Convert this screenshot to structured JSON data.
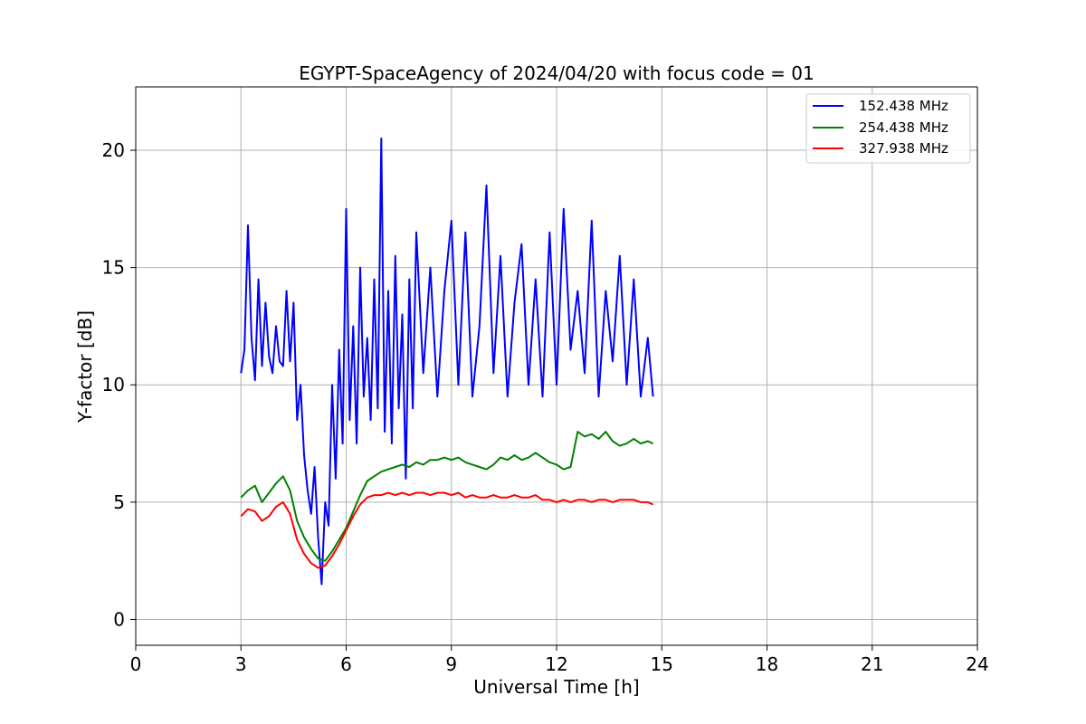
{
  "chart_data": {
    "type": "line",
    "title": "EGYPT-SpaceAgency of 2024/04/20 with focus code = 01",
    "xlabel": "Universal Time [h]",
    "ylabel": "Y-factor [dB]",
    "xlim": [
      0,
      24
    ],
    "ylim": [
      -1.1,
      22.7
    ],
    "xticks": [
      0,
      3,
      6,
      9,
      12,
      15,
      18,
      21,
      24
    ],
    "xtick_labels": [
      "0",
      "3",
      "6",
      "9",
      "12",
      "15",
      "18",
      "21",
      "24"
    ],
    "yticks": [
      0,
      5,
      10,
      15,
      20
    ],
    "ytick_labels": [
      "0",
      "5",
      "10",
      "15",
      "20"
    ],
    "grid": true,
    "legend_position": "top-right",
    "series": [
      {
        "name": "152.438 MHz",
        "color": "#0000ff",
        "x": [
          3.0,
          3.1,
          3.2,
          3.3,
          3.4,
          3.5,
          3.6,
          3.7,
          3.8,
          3.9,
          4.0,
          4.1,
          4.2,
          4.3,
          4.4,
          4.5,
          4.6,
          4.7,
          4.8,
          4.9,
          5.0,
          5.1,
          5.2,
          5.3,
          5.4,
          5.5,
          5.6,
          5.7,
          5.8,
          5.9,
          6.0,
          6.1,
          6.2,
          6.3,
          6.4,
          6.5,
          6.6,
          6.7,
          6.8,
          6.9,
          7.0,
          7.1,
          7.2,
          7.3,
          7.4,
          7.5,
          7.6,
          7.7,
          7.8,
          7.9,
          8.0,
          8.2,
          8.4,
          8.6,
          8.8,
          9.0,
          9.2,
          9.4,
          9.6,
          9.8,
          10.0,
          10.2,
          10.4,
          10.6,
          10.8,
          11.0,
          11.2,
          11.4,
          11.6,
          11.8,
          12.0,
          12.2,
          12.4,
          12.6,
          12.8,
          13.0,
          13.2,
          13.4,
          13.6,
          13.8,
          14.0,
          14.2,
          14.4,
          14.6,
          14.75
        ],
        "values": [
          10.5,
          11.5,
          16.8,
          12.0,
          10.2,
          14.5,
          10.8,
          13.5,
          11.2,
          10.5,
          12.5,
          11.0,
          10.8,
          14.0,
          11.0,
          13.5,
          8.5,
          10.0,
          7.0,
          5.5,
          4.5,
          6.5,
          3.5,
          1.5,
          5.0,
          4.0,
          10.0,
          6.0,
          11.5,
          7.5,
          17.5,
          8.5,
          12.5,
          7.5,
          15.0,
          9.5,
          12.0,
          8.5,
          14.5,
          9.0,
          20.5,
          8.0,
          14.0,
          7.5,
          15.5,
          9.0,
          13.0,
          6.0,
          14.5,
          9.0,
          16.5,
          10.5,
          15.0,
          9.5,
          14.0,
          17.0,
          10.0,
          16.5,
          9.5,
          12.5,
          18.5,
          10.5,
          15.5,
          9.5,
          13.5,
          16.0,
          10.0,
          14.5,
          9.5,
          16.5,
          10.0,
          17.5,
          11.5,
          14.0,
          10.5,
          17.0,
          9.5,
          14.0,
          11.0,
          15.5,
          10.0,
          14.5,
          9.5,
          12.0,
          9.5
        ]
      },
      {
        "name": "254.438 MHz",
        "color": "#008000",
        "x": [
          3.0,
          3.2,
          3.4,
          3.6,
          3.8,
          4.0,
          4.2,
          4.4,
          4.6,
          4.8,
          5.0,
          5.2,
          5.4,
          5.6,
          5.8,
          6.0,
          6.2,
          6.4,
          6.6,
          6.8,
          7.0,
          7.2,
          7.4,
          7.6,
          7.8,
          8.0,
          8.2,
          8.4,
          8.6,
          8.8,
          9.0,
          9.2,
          9.4,
          9.6,
          9.8,
          10.0,
          10.2,
          10.4,
          10.6,
          10.8,
          11.0,
          11.2,
          11.4,
          11.6,
          11.8,
          12.0,
          12.2,
          12.4,
          12.6,
          12.8,
          13.0,
          13.2,
          13.4,
          13.6,
          13.8,
          14.0,
          14.2,
          14.4,
          14.6,
          14.75
        ],
        "values": [
          5.2,
          5.5,
          5.7,
          5.0,
          5.4,
          5.8,
          6.1,
          5.5,
          4.2,
          3.5,
          3.0,
          2.6,
          2.5,
          2.9,
          3.4,
          3.9,
          4.6,
          5.3,
          5.9,
          6.1,
          6.3,
          6.4,
          6.5,
          6.6,
          6.5,
          6.7,
          6.6,
          6.8,
          6.8,
          6.9,
          6.8,
          6.9,
          6.7,
          6.6,
          6.5,
          6.4,
          6.6,
          6.9,
          6.8,
          7.0,
          6.8,
          6.9,
          7.1,
          6.9,
          6.7,
          6.6,
          6.4,
          6.5,
          8.0,
          7.8,
          7.9,
          7.7,
          8.0,
          7.6,
          7.4,
          7.5,
          7.7,
          7.5,
          7.6,
          7.5
        ]
      },
      {
        "name": "327.938 MHz",
        "color": "#ff0000",
        "x": [
          3.0,
          3.2,
          3.4,
          3.6,
          3.8,
          4.0,
          4.2,
          4.4,
          4.6,
          4.8,
          5.0,
          5.2,
          5.4,
          5.6,
          5.8,
          6.0,
          6.2,
          6.4,
          6.6,
          6.8,
          7.0,
          7.2,
          7.4,
          7.6,
          7.8,
          8.0,
          8.2,
          8.4,
          8.6,
          8.8,
          9.0,
          9.2,
          9.4,
          9.6,
          9.8,
          10.0,
          10.2,
          10.4,
          10.6,
          10.8,
          11.0,
          11.2,
          11.4,
          11.6,
          11.8,
          12.0,
          12.2,
          12.4,
          12.6,
          12.8,
          13.0,
          13.2,
          13.4,
          13.6,
          13.8,
          14.0,
          14.2,
          14.4,
          14.6,
          14.75
        ],
        "values": [
          4.4,
          4.7,
          4.6,
          4.2,
          4.4,
          4.8,
          5.0,
          4.5,
          3.4,
          2.8,
          2.4,
          2.2,
          2.3,
          2.7,
          3.2,
          3.8,
          4.4,
          4.9,
          5.2,
          5.3,
          5.3,
          5.4,
          5.3,
          5.4,
          5.3,
          5.4,
          5.4,
          5.3,
          5.4,
          5.4,
          5.3,
          5.4,
          5.2,
          5.3,
          5.2,
          5.2,
          5.3,
          5.2,
          5.2,
          5.3,
          5.2,
          5.2,
          5.3,
          5.1,
          5.1,
          5.0,
          5.1,
          5.0,
          5.1,
          5.1,
          5.0,
          5.1,
          5.1,
          5.0,
          5.1,
          5.1,
          5.1,
          5.0,
          5.0,
          4.9
        ]
      }
    ]
  }
}
